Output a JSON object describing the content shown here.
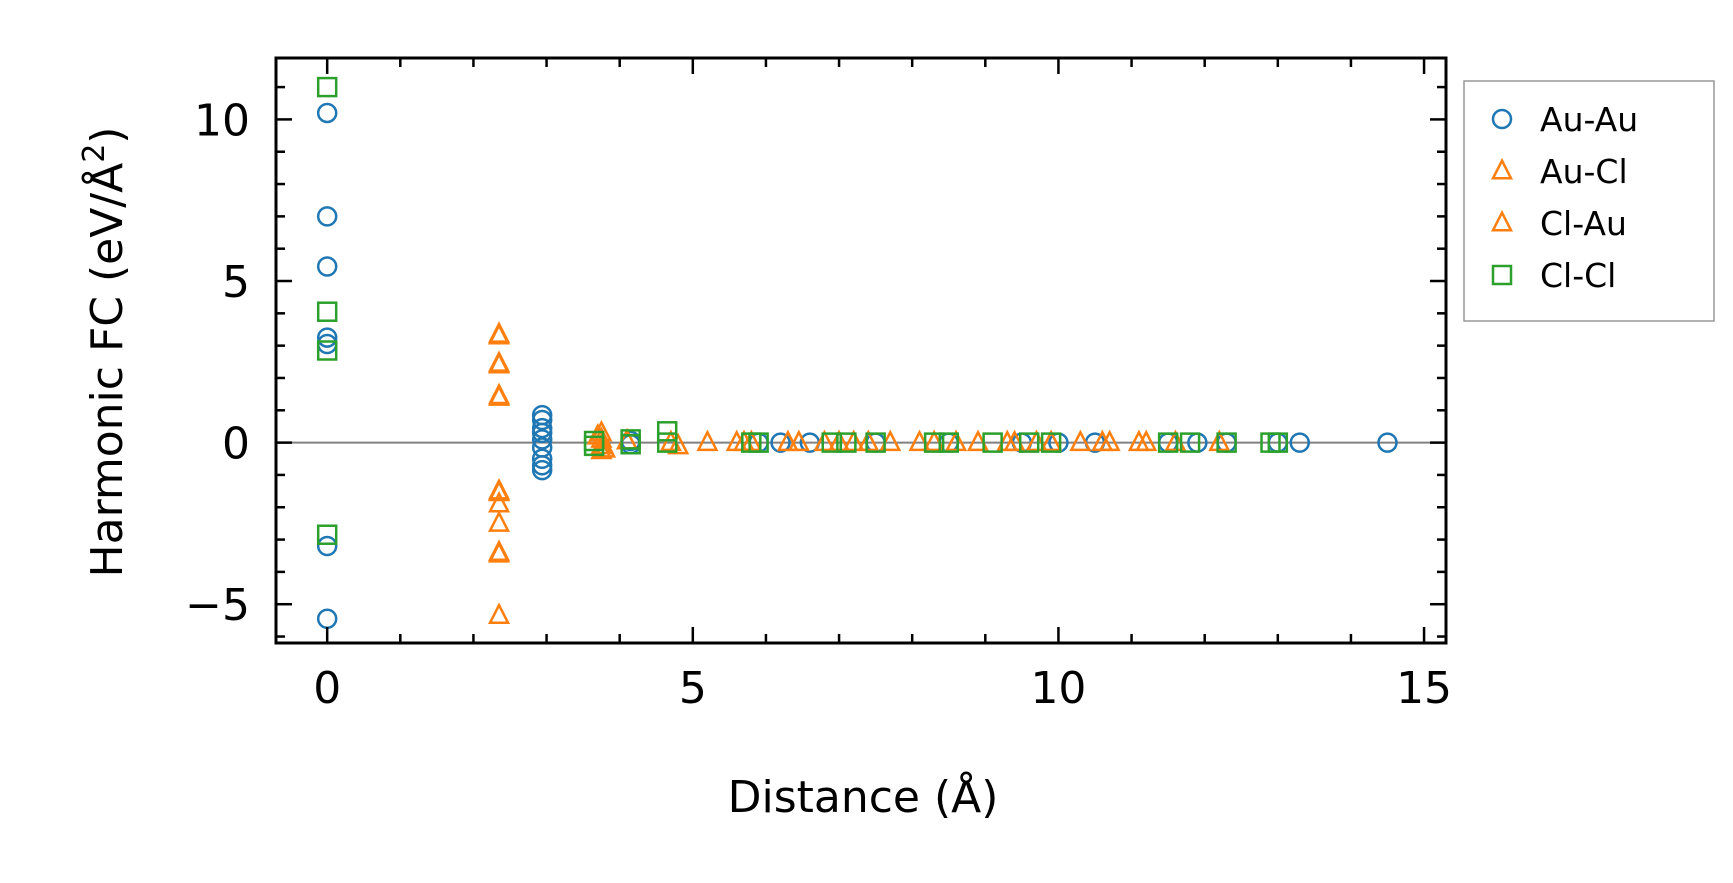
{
  "chart_data": {
    "type": "scatter",
    "xlabel": "Distance (Å)",
    "ylabel": {
      "prefix": "Harmonic FC (eV/Å",
      "sup": "2",
      "suffix": ")"
    },
    "xlim": [
      -0.7,
      15.3
    ],
    "ylim": [
      -6.2,
      11.9
    ],
    "xticks": [
      0,
      5,
      10,
      15
    ],
    "xtick_labels": [
      "0",
      "5",
      "10",
      "15"
    ],
    "yticks": [
      -5,
      0,
      5,
      10
    ],
    "ytick_labels": [
      "−5",
      "0",
      "5",
      "10"
    ],
    "grid": false,
    "zero_line": true,
    "legend_position": "outside-right-top",
    "series": [
      {
        "name": "Au-Au",
        "marker": "circle",
        "color": "#1f77b4",
        "points": [
          [
            0,
            10.2
          ],
          [
            0,
            7.0
          ],
          [
            0,
            5.45
          ],
          [
            0,
            3.25
          ],
          [
            0,
            3.05
          ],
          [
            0,
            -3.2
          ],
          [
            0,
            -5.45
          ],
          [
            2.94,
            0.85
          ],
          [
            2.94,
            0.7
          ],
          [
            2.94,
            0.45
          ],
          [
            2.94,
            0.3
          ],
          [
            2.94,
            0.1
          ],
          [
            2.94,
            -0.15
          ],
          [
            2.94,
            -0.5
          ],
          [
            2.94,
            -0.7
          ],
          [
            2.94,
            -0.85
          ],
          [
            4.15,
            0.05
          ],
          [
            4.15,
            -0.05
          ],
          [
            5.9,
            0.0
          ],
          [
            6.2,
            0.0
          ],
          [
            6.6,
            0.0
          ],
          [
            7.5,
            0.0
          ],
          [
            8.5,
            0.0
          ],
          [
            9.5,
            0.0
          ],
          [
            10.0,
            0.0
          ],
          [
            10.5,
            0.0
          ],
          [
            11.5,
            0.0
          ],
          [
            11.9,
            0.0
          ],
          [
            12.3,
            0.0
          ],
          [
            13.0,
            0.0
          ],
          [
            13.3,
            0.0
          ],
          [
            14.5,
            0.0
          ]
        ]
      },
      {
        "name": "Au-Cl",
        "marker": "triangle",
        "color": "#ff7f0e",
        "points": [
          [
            2.35,
            3.35
          ],
          [
            2.35,
            2.45
          ],
          [
            2.35,
            1.45
          ],
          [
            2.35,
            -1.5
          ],
          [
            2.35,
            -1.9
          ],
          [
            2.35,
            -2.5
          ],
          [
            2.35,
            -3.4
          ],
          [
            2.35,
            -5.35
          ],
          [
            3.75,
            0.3
          ],
          [
            3.75,
            0.1
          ],
          [
            3.75,
            -0.1
          ],
          [
            3.75,
            -0.25
          ],
          [
            4.1,
            0.05
          ],
          [
            4.7,
            0.0
          ],
          [
            4.8,
            -0.1
          ],
          [
            5.2,
            0.0
          ],
          [
            5.6,
            0.0
          ],
          [
            5.8,
            0.0
          ],
          [
            6.3,
            0.0
          ],
          [
            6.45,
            0.0
          ],
          [
            7.0,
            0.0
          ],
          [
            7.2,
            0.0
          ],
          [
            7.4,
            0.0
          ],
          [
            7.7,
            0.0
          ],
          [
            8.3,
            0.0
          ],
          [
            8.6,
            0.0
          ],
          [
            8.9,
            0.0
          ],
          [
            9.3,
            0.0
          ],
          [
            9.7,
            0.0
          ],
          [
            9.9,
            0.0
          ],
          [
            10.3,
            0.0
          ],
          [
            10.6,
            0.0
          ],
          [
            10.7,
            0.0
          ],
          [
            11.1,
            0.0
          ],
          [
            11.6,
            0.0
          ],
          [
            12.2,
            0.0
          ]
        ]
      },
      {
        "name": "Cl-Au",
        "marker": "triangle",
        "color": "#ff7f0e",
        "points": [
          [
            2.35,
            3.3
          ],
          [
            2.35,
            2.4
          ],
          [
            2.35,
            1.4
          ],
          [
            2.35,
            -1.55
          ],
          [
            2.35,
            -3.45
          ],
          [
            3.7,
            0.2
          ],
          [
            3.8,
            -0.2
          ],
          [
            5.7,
            0.0
          ],
          [
            6.8,
            0.0
          ],
          [
            8.1,
            0.0
          ],
          [
            9.4,
            0.0
          ],
          [
            11.2,
            0.0
          ]
        ]
      },
      {
        "name": "Cl-Cl",
        "marker": "square",
        "color": "#2ca02c",
        "points": [
          [
            0,
            11.0
          ],
          [
            0,
            4.05
          ],
          [
            0,
            2.85
          ],
          [
            0,
            -2.85
          ],
          [
            3.65,
            0.05
          ],
          [
            3.65,
            -0.1
          ],
          [
            4.15,
            0.1
          ],
          [
            4.15,
            -0.05
          ],
          [
            4.65,
            0.35
          ],
          [
            4.65,
            0.0
          ],
          [
            5.8,
            0.0
          ],
          [
            5.9,
            0.0
          ],
          [
            6.9,
            0.0
          ],
          [
            7.1,
            0.0
          ],
          [
            7.5,
            0.0
          ],
          [
            8.3,
            0.0
          ],
          [
            8.5,
            0.0
          ],
          [
            9.1,
            0.0
          ],
          [
            9.6,
            0.0
          ],
          [
            9.9,
            0.0
          ],
          [
            11.5,
            0.0
          ],
          [
            11.8,
            0.0
          ],
          [
            12.3,
            0.0
          ],
          [
            12.9,
            0.0
          ],
          [
            13.0,
            0.0
          ]
        ]
      }
    ]
  }
}
